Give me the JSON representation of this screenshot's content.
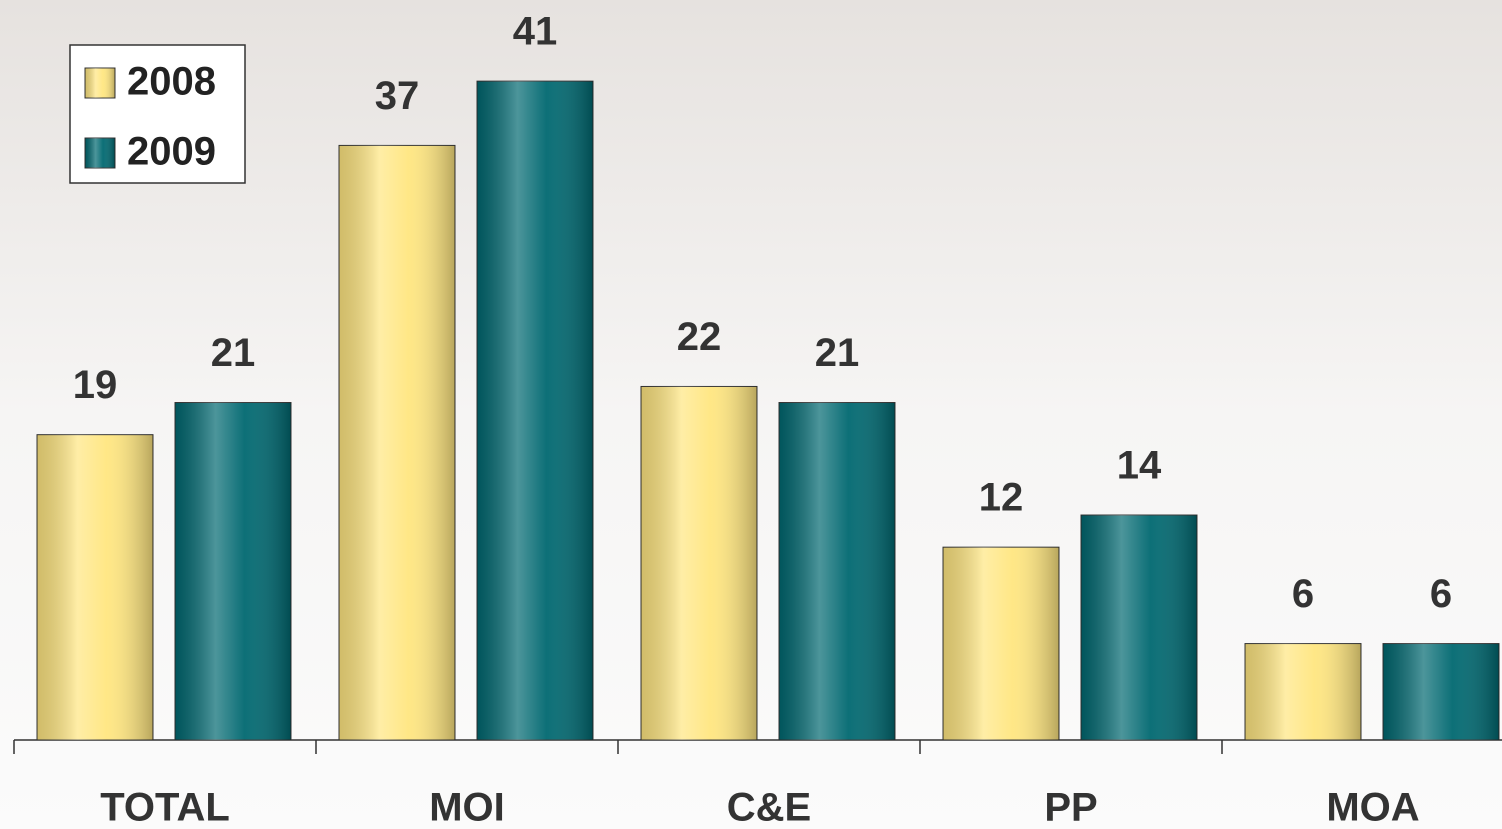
{
  "chart_data": {
    "type": "bar",
    "categories": [
      "TOTAL",
      "MOI",
      "C&E",
      "PP",
      "MOA"
    ],
    "series": [
      {
        "name": "2008",
        "color": "#ffe680",
        "values": [
          19,
          37,
          22,
          12,
          6
        ]
      },
      {
        "name": "2009",
        "color": "#006870",
        "values": [
          21,
          41,
          21,
          14,
          6
        ]
      }
    ],
    "legend": "top-left"
  }
}
